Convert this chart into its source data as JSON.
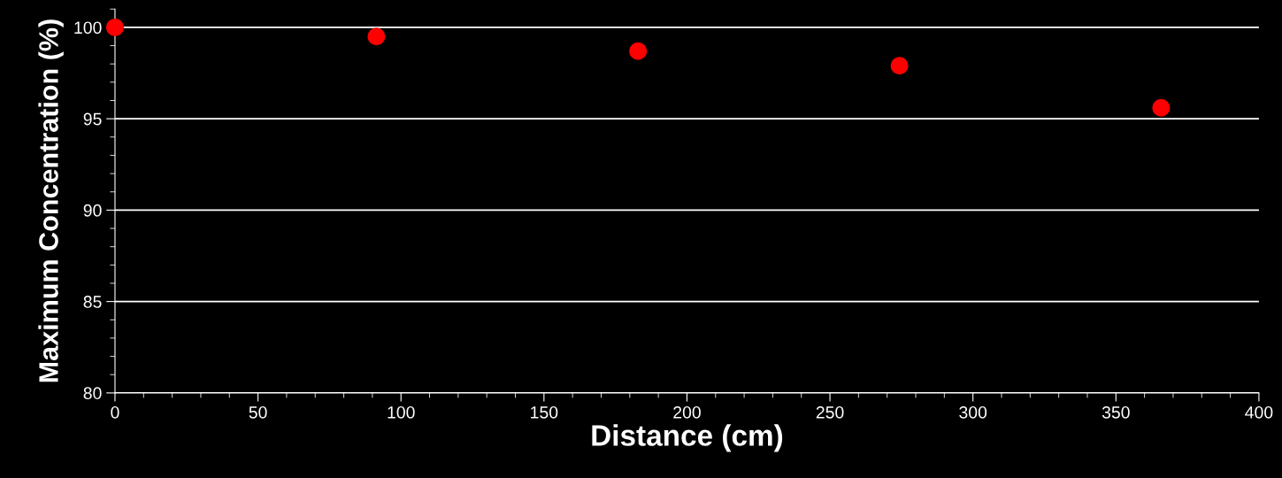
{
  "chart_data": {
    "type": "scatter",
    "xlabel": "Distance (cm)",
    "ylabel": "Maximum Concentration (%)",
    "x": [
      0,
      91.4,
      182.9,
      274.3,
      365.8
    ],
    "series": [
      {
        "color": "#ff0000",
        "values": [
          100,
          99.5,
          98.7,
          97.9,
          95.6
        ]
      }
    ],
    "xlim": [
      0,
      400
    ],
    "xticks": [
      0,
      50,
      100,
      150,
      200,
      250,
      300,
      350,
      400
    ],
    "ylim": [
      80,
      101
    ],
    "yticks": [
      80,
      85,
      90,
      95,
      100
    ],
    "grid": "y",
    "marker": "circle"
  }
}
